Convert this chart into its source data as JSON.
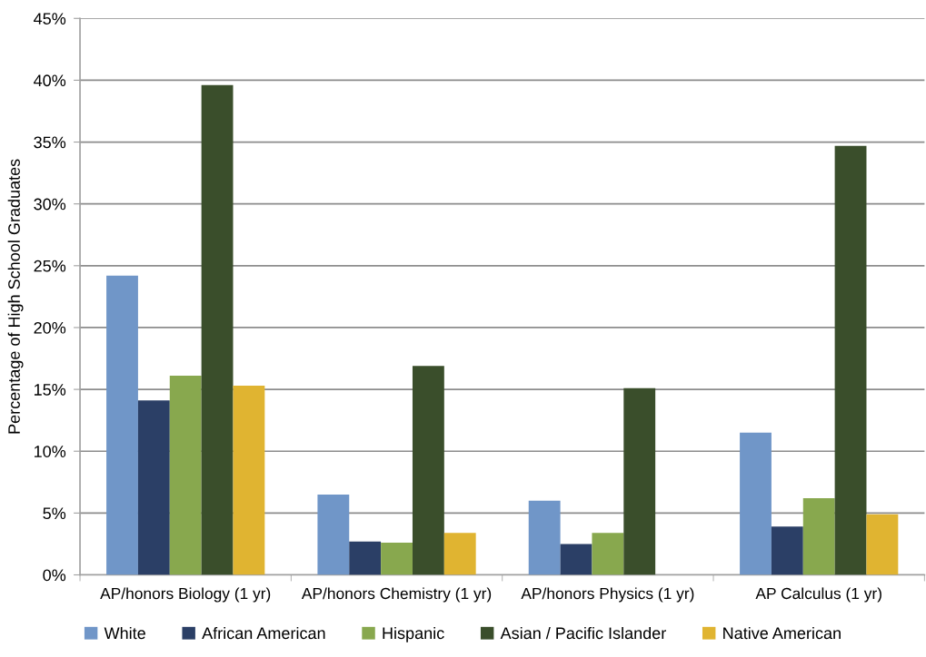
{
  "chart_data": {
    "type": "bar",
    "ylabel": "Percentage of High School Graduates",
    "categories": [
      "AP/honors Biology (1 yr)",
      "AP/honors Chemistry (1 yr)",
      "AP/honors Physics (1 yr)",
      "AP Calculus (1 yr)"
    ],
    "series": [
      {
        "name": "White",
        "color": "#7096c8",
        "values": [
          24.2,
          6.5,
          6.0,
          11.5
        ]
      },
      {
        "name": "African American",
        "color": "#2b3f66",
        "values": [
          14.1,
          2.7,
          2.5,
          3.9
        ]
      },
      {
        "name": "Hispanic",
        "color": "#88a84e",
        "values": [
          16.1,
          2.6,
          3.4,
          6.2
        ]
      },
      {
        "name": "Asian / Pacific Islander",
        "color": "#3a4e2b",
        "values": [
          39.6,
          16.9,
          15.1,
          34.7
        ]
      },
      {
        "name": "Native American",
        "color": "#e0b431",
        "values": [
          15.3,
          3.4,
          null,
          4.9
        ]
      }
    ],
    "ylim": [
      0,
      45
    ],
    "yticks": [
      {
        "value": 0,
        "label": "0%"
      },
      {
        "value": 5,
        "label": "5%"
      },
      {
        "value": 10,
        "label": "10%"
      },
      {
        "value": 15,
        "label": "15%"
      },
      {
        "value": 20,
        "label": "20%"
      },
      {
        "value": 25,
        "label": "25%"
      },
      {
        "value": 30,
        "label": "30%"
      },
      {
        "value": 35,
        "label": "35%"
      },
      {
        "value": 40,
        "label": "40%"
      },
      {
        "value": 45,
        "label": "45%"
      }
    ],
    "grid": "y",
    "legend": "bottom"
  }
}
